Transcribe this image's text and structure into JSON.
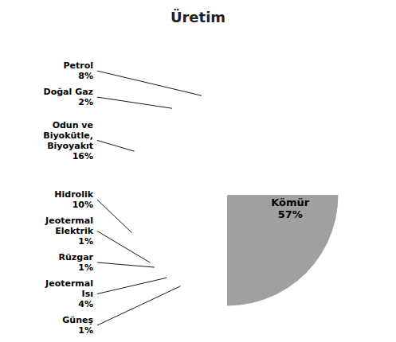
{
  "chart_data": {
    "type": "pie",
    "title": "Üretim",
    "categories": [
      "Kömür",
      "Güneş",
      "Jeotermal\nIsı",
      "Rüzgar",
      "Jeotermal\nElektrik",
      "Hidrolik",
      "Odun ve\nBiyokütle,\nBiyoyakıt",
      "Doğal Gaz",
      "Petrol"
    ],
    "values": [
      57,
      1,
      4,
      1,
      1,
      10,
      16,
      2,
      8
    ],
    "value_labels": [
      "57%",
      "1%",
      "4%",
      "1%",
      "1%",
      "10%",
      "16%",
      "2%",
      "8%"
    ],
    "colors": [
      "#A0A0A0",
      "#E8A800",
      "#E8AABB",
      "#5577BB",
      "#8B4513",
      "#00B0C8",
      "#AACC33",
      "#44AADD",
      "#CC2222"
    ],
    "data_labels": true
  }
}
